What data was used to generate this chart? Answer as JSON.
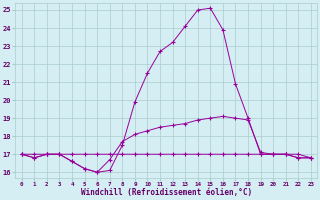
{
  "hours": [
    0,
    1,
    2,
    3,
    4,
    5,
    6,
    7,
    8,
    9,
    10,
    11,
    12,
    13,
    14,
    15,
    16,
    17,
    18,
    19,
    20,
    21,
    22,
    23
  ],
  "line1": [
    17.0,
    16.8,
    17.0,
    17.0,
    16.6,
    16.2,
    16.0,
    16.1,
    17.5,
    19.9,
    21.5,
    22.7,
    23.2,
    24.1,
    25.0,
    25.1,
    23.9,
    20.9,
    19.0,
    17.0,
    17.0,
    17.0,
    16.8,
    16.8
  ],
  "line2": [
    17.0,
    16.8,
    17.0,
    17.0,
    16.6,
    16.2,
    16.0,
    16.7,
    17.7,
    18.1,
    18.3,
    18.5,
    18.6,
    18.7,
    18.9,
    19.0,
    19.1,
    19.0,
    18.9,
    17.1,
    17.0,
    17.0,
    16.8,
    16.8
  ],
  "line3": [
    17.0,
    17.0,
    17.0,
    17.0,
    17.0,
    17.0,
    17.0,
    17.0,
    17.0,
    17.0,
    17.0,
    17.0,
    17.0,
    17.0,
    17.0,
    17.0,
    17.0,
    17.0,
    17.0,
    17.0,
    17.0,
    17.0,
    17.0,
    16.8
  ],
  "line_color": "#990099",
  "bg_color": "#d4eef4",
  "grid_color": "#aacccc",
  "axis_color": "#660066",
  "ylim": [
    15.7,
    25.4
  ],
  "yticks": [
    16,
    17,
    18,
    19,
    20,
    21,
    22,
    23,
    24,
    25
  ],
  "xlabel": "Windchill (Refroidissement éolien,°C)"
}
